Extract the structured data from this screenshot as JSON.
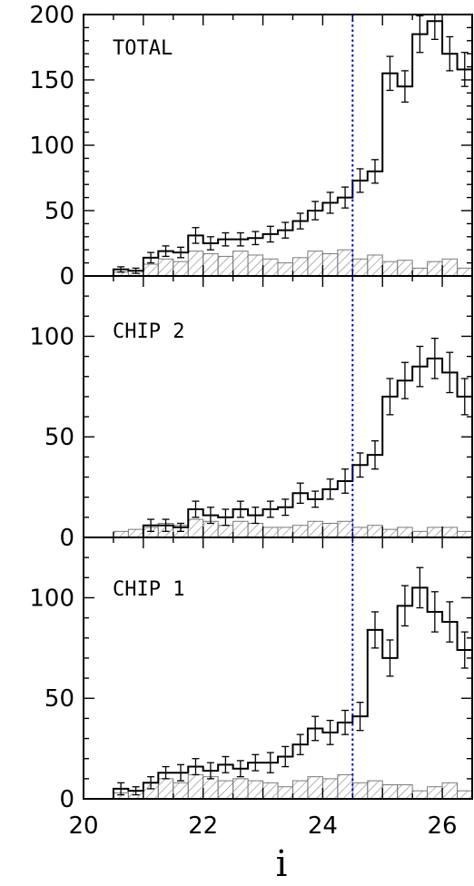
{
  "chart_data": {
    "type": "histogram",
    "xlabel": "i",
    "xlim": [
      20,
      26.5
    ],
    "x_ticks": [
      20,
      22,
      24,
      26
    ],
    "bin_width": 0.25,
    "bin_start": 20.5,
    "reference_line": {
      "x": 24.5,
      "color": "#0000cc",
      "style": "dotted"
    },
    "hatch_color": "#7a7a7a",
    "panels": [
      {
        "title": "TOTAL",
        "ylim": [
          0,
          200
        ],
        "y_ticks": [
          0,
          50,
          100,
          150,
          200
        ],
        "counts": [
          5,
          4,
          14,
          19,
          18,
          31,
          25,
          28,
          28,
          29,
          32,
          35,
          42,
          50,
          56,
          60,
          73,
          80,
          155,
          145,
          185,
          195,
          170,
          158
        ],
        "errors": [
          2,
          2,
          4,
          4,
          4,
          6,
          5,
          5,
          5,
          5,
          6,
          6,
          6,
          7,
          8,
          8,
          9,
          9,
          13,
          12,
          14,
          14,
          13,
          13
        ],
        "background": [
          3,
          4,
          9,
          13,
          11,
          19,
          17,
          15,
          19,
          16,
          13,
          10,
          14,
          19,
          17,
          20,
          13,
          16,
          11,
          12,
          6,
          11,
          13,
          6
        ]
      },
      {
        "title": "CHIP 2",
        "ylim": [
          0,
          130
        ],
        "y_ticks": [
          0,
          50,
          100
        ],
        "counts": [
          0,
          0,
          6,
          6,
          5,
          14,
          11,
          10,
          14,
          11,
          14,
          15,
          22,
          19,
          24,
          28,
          36,
          41,
          70,
          78,
          85,
          89,
          82,
          70
        ],
        "errors": [
          0,
          0,
          3,
          3,
          2,
          4,
          4,
          4,
          4,
          4,
          4,
          4,
          5,
          4,
          5,
          6,
          6,
          7,
          9,
          9,
          10,
          10,
          10,
          9
        ],
        "background": [
          3,
          4,
          5,
          7,
          6,
          9,
          8,
          6,
          8,
          7,
          5,
          5,
          6,
          8,
          7,
          8,
          5,
          6,
          4,
          5,
          3,
          5,
          5,
          3
        ]
      },
      {
        "title": "CHIP 1",
        "ylim": [
          0,
          130
        ],
        "y_ticks": [
          0,
          50,
          100
        ],
        "counts": [
          5,
          4,
          8,
          13,
          13,
          16,
          14,
          17,
          15,
          18,
          18,
          21,
          27,
          35,
          33,
          38,
          41,
          84,
          70,
          96,
          105,
          93,
          88,
          74
        ],
        "errors": [
          3,
          2,
          3,
          3,
          4,
          4,
          4,
          4,
          4,
          4,
          5,
          5,
          5,
          6,
          6,
          6,
          7,
          9,
          9,
          10,
          10,
          10,
          10,
          9
        ],
        "background": [
          3,
          4,
          8,
          10,
          8,
          12,
          11,
          9,
          10,
          9,
          8,
          6,
          9,
          11,
          10,
          12,
          8,
          9,
          7,
          7,
          4,
          6,
          8,
          4
        ]
      }
    ]
  },
  "figure": {
    "xlabel": "i"
  }
}
